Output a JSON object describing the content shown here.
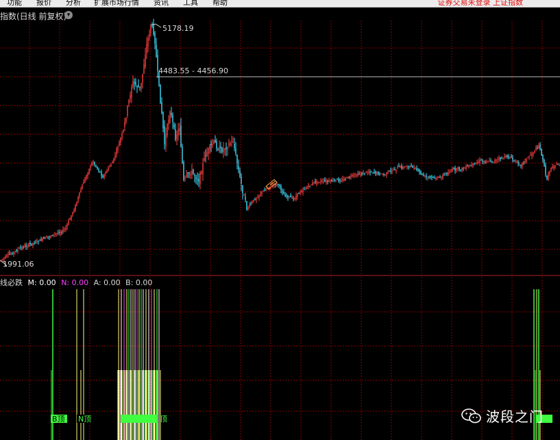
{
  "menu": {
    "items": [
      "功能",
      "报价",
      "分析",
      "扩展市场行情",
      "资讯",
      "工具",
      "帮助"
    ],
    "right_status": "证券交易未登录  上证指数"
  },
  "chart": {
    "title": "指数(日线 前复权)",
    "high_label": "5178.19",
    "range_label": "4483.55 - 4456.90",
    "low_label": "1991.06"
  },
  "indicator": {
    "name": "线必跌",
    "m_label": "M: 0.00",
    "n_label": "N: 0.00",
    "a_label": "A: 0.00",
    "b_label": "B: 0.00",
    "signal_labels": [
      "B顶",
      "N顶",
      "顶"
    ]
  },
  "colors": {
    "up": "#ff4040",
    "down": "#40e0ff",
    "grid": "#8b0000",
    "signal_green": "#40ff40",
    "signal_yellow": "#ffff80",
    "signal_magenta": "#ff40ff",
    "signal_white": "#ffffff"
  },
  "watermark": {
    "text": "波段之门",
    "icon": "wechat-icon"
  }
}
